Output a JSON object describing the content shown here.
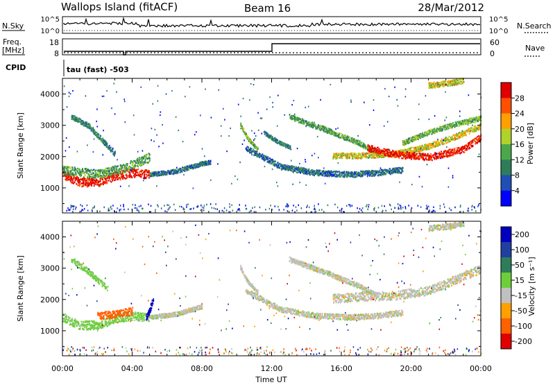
{
  "header": {
    "station": "Wallops Island (fitACF)",
    "beam": "Beam 16",
    "date": "28/Mar/2012"
  },
  "noise_panel": {
    "left_label": "N.Sky",
    "left_ticks": [
      "10^5",
      "10^0"
    ],
    "right_ticks": [
      "10^5",
      "10^0"
    ],
    "right_label": "N.Search"
  },
  "freq_panel": {
    "left_label_1": "Freq.",
    "left_label_2": "[MHz]",
    "left_ticks": [
      "18",
      "8"
    ],
    "right_ticks": [
      "60",
      "0"
    ],
    "right_label": "Nave",
    "cpid_label": "CPID",
    "cpid_text": "tau (fast) -503"
  },
  "power_panel": {
    "ylabel": "Slant Range [km]",
    "colorbar_label": "Power [dB]",
    "colorbar_ticks": [
      "28",
      "24",
      "20",
      "16",
      "12",
      "8",
      "4"
    ]
  },
  "velocity_panel": {
    "ylabel": "Slant Range [km]",
    "colorbar_label": "Velocity [m s⁻¹]",
    "colorbar_ticks": [
      "200",
      "100",
      "50",
      "15",
      "-15",
      "-50",
      "-100",
      "-200"
    ]
  },
  "xaxis": {
    "label": "Time UT",
    "ticks": [
      "00:00",
      "04:00",
      "08:00",
      "12:00",
      "16:00",
      "20:00",
      "00:00"
    ]
  },
  "colors": {
    "power_scale": [
      "#0000ff",
      "#1f4fb4",
      "#2e7d5a",
      "#4aa84a",
      "#b0d22a",
      "#ffa000",
      "#ff5000",
      "#e00000"
    ],
    "velocity_scale": [
      "#0000c0",
      "#2040a0",
      "#2e7d5a",
      "#6ccf3a",
      "#c0c0c0",
      "#ffa000",
      "#ff6000",
      "#e00000"
    ]
  },
  "chart_data": [
    {
      "type": "heatmap",
      "name_in_figure": "power",
      "title": "",
      "xlabel": "Time UT",
      "ylabel": "Slant Range [km]",
      "x_range_hours": [
        0,
        24
      ],
      "y_ticks": [
        1000,
        2000,
        3000,
        4000
      ],
      "ylim": [
        200,
        4500
      ],
      "colorbar": {
        "label": "Power [dB]",
        "range": [
          0,
          30
        ],
        "ticks": [
          4,
          8,
          12,
          16,
          20,
          24,
          28
        ]
      },
      "bands": [
        {
          "x": [
            0.0,
            1.0,
            2.0,
            3.0,
            4.0,
            5.0
          ],
          "y": [
            1450,
            1200,
            1200,
            1400,
            1500,
            1450
          ],
          "width": 140,
          "value": 28
        },
        {
          "x": [
            0.0,
            2.0,
            3.5,
            5.0
          ],
          "y": [
            1600,
            1450,
            1650,
            2000
          ],
          "width": 140,
          "value": 12
        },
        {
          "x": [
            5.0,
            6.5,
            8.0,
            8.5
          ],
          "y": [
            1450,
            1550,
            1800,
            1850
          ],
          "width": 70,
          "value": 8
        },
        {
          "x": [
            0.5,
            1.5,
            2.5,
            3.0
          ],
          "y": [
            3300,
            3000,
            2400,
            2100
          ],
          "width": 80,
          "value": 10
        },
        {
          "x": [
            10.2,
            10.6,
            11.2
          ],
          "y": [
            3050,
            2600,
            2250
          ],
          "width": 60,
          "value": 14
        },
        {
          "x": [
            11.5,
            12.3,
            13.1
          ],
          "y": [
            2800,
            2500,
            2300
          ],
          "width": 60,
          "value": 10
        },
        {
          "x": [
            10.5,
            12.5,
            14.5,
            16.5,
            18.0,
            19.5
          ],
          "y": [
            2300,
            1700,
            1500,
            1450,
            1500,
            1600
          ],
          "width": 90,
          "value": 8
        },
        {
          "x": [
            13.0,
            15.0,
            17.0,
            18.0
          ],
          "y": [
            3300,
            2900,
            2450,
            2150
          ],
          "width": 80,
          "value": 12
        },
        {
          "x": [
            15.5,
            17.0,
            19.0,
            21.0,
            22.5,
            24.0
          ],
          "y": [
            2050,
            2050,
            2100,
            2350,
            2650,
            3000
          ],
          "width": 90,
          "value": 18
        },
        {
          "x": [
            17.5,
            19.0,
            21.0,
            23.0,
            24.0
          ],
          "y": [
            2300,
            2100,
            2000,
            2250,
            2650
          ],
          "width": 110,
          "value": 28
        },
        {
          "x": [
            19.5,
            21.0,
            22.5,
            24.0
          ],
          "y": [
            2450,
            2800,
            3050,
            3250
          ],
          "width": 80,
          "value": 14
        },
        {
          "x": [
            21.0,
            22.0,
            23.0
          ],
          "y": [
            4300,
            4350,
            4450
          ],
          "width": 90,
          "value": 18
        }
      ]
    },
    {
      "type": "heatmap",
      "name_in_figure": "velocity",
      "title": "",
      "xlabel": "Time UT",
      "ylabel": "Slant Range [km]",
      "x_range_hours": [
        0,
        24
      ],
      "y_ticks": [
        1000,
        2000,
        3000,
        4000
      ],
      "ylim": [
        200,
        4500
      ],
      "colorbar": {
        "label": "Velocity [m s⁻¹]",
        "range": [
          -250,
          250
        ],
        "ticks": [
          200,
          100,
          50,
          15,
          -15,
          -50,
          -100,
          -200
        ]
      },
      "bands": [
        {
          "x": [
            0.0,
            1.0,
            2.0,
            3.0,
            4.0,
            5.0
          ],
          "y": [
            1450,
            1200,
            1200,
            1400,
            1500,
            1450
          ],
          "width": 140,
          "value": 30
        },
        {
          "x": [
            2.0,
            3.0,
            4.0
          ],
          "y": [
            1500,
            1550,
            1650
          ],
          "width": 120,
          "value": -70
        },
        {
          "x": [
            4.8,
            5.0,
            5.2
          ],
          "y": [
            1450,
            1700,
            2050
          ],
          "width": 110,
          "value": 220
        },
        {
          "x": [
            5.0,
            6.5,
            8.0
          ],
          "y": [
            1450,
            1550,
            1800
          ],
          "width": 70,
          "value": 0
        },
        {
          "x": [
            0.5,
            1.5,
            2.5
          ],
          "y": [
            3300,
            2900,
            2400
          ],
          "width": 90,
          "value": 30
        },
        {
          "x": [
            10.2,
            10.6,
            11.2
          ],
          "y": [
            3050,
            2600,
            2250
          ],
          "width": 60,
          "value": 0
        },
        {
          "x": [
            10.5,
            12.5,
            14.5,
            16.5,
            18.0,
            19.5
          ],
          "y": [
            2300,
            1700,
            1500,
            1450,
            1500,
            1600
          ],
          "width": 90,
          "value": 0
        },
        {
          "x": [
            13.0,
            15.0,
            17.0,
            18.0
          ],
          "y": [
            3300,
            2900,
            2450,
            2150
          ],
          "width": 80,
          "value": 0
        },
        {
          "x": [
            15.5,
            17.0,
            19.0,
            21.0,
            22.5,
            24.0
          ],
          "y": [
            2050,
            2100,
            2150,
            2300,
            2650,
            3000
          ],
          "width": 140,
          "value": 0
        },
        {
          "x": [
            21.0,
            22.0,
            23.0
          ],
          "y": [
            4300,
            4350,
            4450
          ],
          "width": 90,
          "value": 0
        }
      ]
    }
  ]
}
